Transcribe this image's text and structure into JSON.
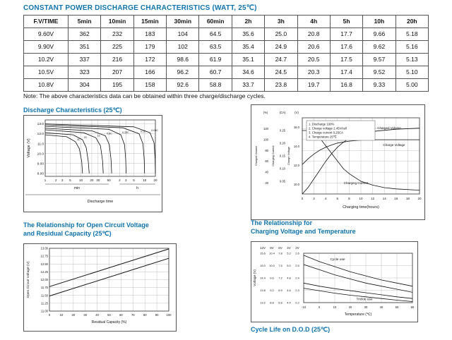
{
  "page": {
    "title": "CONSTANT POWER DISCHARGE CHARACTERISTICS (WATT, 25℃)",
    "note": "Note: The above characteristics data can be obtained within three charge/discharge cycles."
  },
  "table": {
    "headers": [
      "F.V/TIME",
      "5min",
      "10min",
      "15min",
      "30min",
      "60min",
      "2h",
      "3h",
      "4h",
      "5h",
      "10h",
      "20h"
    ],
    "rows": [
      [
        "9.60V",
        "362",
        "232",
        "183",
        "104",
        "64.5",
        "35.6",
        "25.0",
        "20.8",
        "17.7",
        "9.66",
        "5.18"
      ],
      [
        "9.90V",
        "351",
        "225",
        "179",
        "102",
        "63.5",
        "35.4",
        "24.9",
        "20.6",
        "17.6",
        "9.62",
        "5.16"
      ],
      [
        "10.2V",
        "337",
        "216",
        "172",
        "98.6",
        "61.9",
        "35.1",
        "24.7",
        "20.5",
        "17.5",
        "9.57",
        "5.13"
      ],
      [
        "10.5V",
        "323",
        "207",
        "166",
        "96.2",
        "60.7",
        "34.6",
        "24.5",
        "20.3",
        "17.4",
        "9.52",
        "5.10"
      ],
      [
        "10.8V",
        "304",
        "195",
        "158",
        "92.6",
        "58.8",
        "33.7",
        "23.8",
        "19.7",
        "16.8",
        "9.33",
        "5.00"
      ]
    ]
  },
  "sections": {
    "discharge_title": "Discharge Characteristics (25℃)",
    "ocv_title": [
      "The Relationship for Open Circuit Voltage",
      "and Residual Capacity (25℃)"
    ],
    "charging_title": [
      "The Relationship for",
      "Charging Voltage and Temperature"
    ],
    "cycle_title": "Cycle Life on D.O.D (25℃)"
  },
  "colors": {
    "accent": "#0f74ad",
    "line": "#111111",
    "grid": "#999999"
  },
  "chart_data": [
    {
      "id": "discharge",
      "type": "line",
      "title": "Discharge Characteristics (25℃)",
      "xlabel": "Discharge time",
      "ylabel": "Voltage (V)",
      "x_scale": "log-minutes",
      "x_ticks_min": [
        1,
        2,
        3,
        5,
        10,
        20,
        30,
        60
      ],
      "x_ticks_hours": [
        2,
        3,
        5,
        10,
        20
      ],
      "x_unit_labels": [
        "min",
        "h"
      ],
      "y_ticks": [
        "13.0",
        "12.0",
        "11.0",
        "10.0",
        "9.00",
        "8.00"
      ],
      "ylim": [
        7.7,
        13.4
      ],
      "series": [
        {
          "name": "3C",
          "points_min_v": [
            [
              1,
              11.9
            ],
            [
              4,
              11.7
            ],
            [
              7,
              11.2
            ],
            [
              9,
              10.5
            ],
            [
              10.5,
              9.2
            ],
            [
              11,
              8.0
            ]
          ]
        },
        {
          "name": "2C",
          "points_min_v": [
            [
              1,
              12.1
            ],
            [
              6,
              11.9
            ],
            [
              11,
              11.4
            ],
            [
              14,
              10.6
            ],
            [
              16,
              9.2
            ],
            [
              17,
              8.0
            ]
          ]
        },
        {
          "name": "1C",
          "points_min_v": [
            [
              1,
              12.4
            ],
            [
              12,
              12.1
            ],
            [
              26,
              11.6
            ],
            [
              35,
              10.8
            ],
            [
              40,
              9.3
            ],
            [
              42,
              8.0
            ]
          ]
        },
        {
          "name": "0.6C",
          "points_min_v": [
            [
              1,
              12.55
            ],
            [
              20,
              12.3
            ],
            [
              48,
              11.8
            ],
            [
              62,
              10.9
            ],
            [
              69,
              9.4
            ],
            [
              72,
              8.0
            ]
          ]
        },
        {
          "name": "0.25C",
          "points_min_v": [
            [
              1,
              12.75
            ],
            [
              60,
              12.45
            ],
            [
              130,
              11.9
            ],
            [
              165,
              10.9
            ],
            [
              178,
              9.4
            ],
            [
              183,
              8.0
            ]
          ]
        },
        {
          "name": "0.1C",
          "points_min_v": [
            [
              1,
              12.9
            ],
            [
              150,
              12.6
            ],
            [
              420,
              12.0
            ],
            [
              540,
              11.0
            ],
            [
              585,
              9.4
            ],
            [
              600,
              8.0
            ]
          ]
        },
        {
          "name": "0.05C",
          "points_min_v": [
            [
              1,
              13.0
            ],
            [
              300,
              12.7
            ],
            [
              850,
              12.1
            ],
            [
              1100,
              11.1
            ],
            [
              1180,
              9.5
            ],
            [
              1200,
              8.0
            ]
          ]
        }
      ]
    },
    {
      "id": "charge",
      "type": "line",
      "xlabel": "Charging time(hours)",
      "x_ticks": [
        0,
        2,
        4,
        6,
        8,
        10,
        12,
        14,
        16,
        18,
        20
      ],
      "axes": [
        {
          "name": "Charged Volume",
          "unit": "(%)",
          "ticks": [
            "120",
            "100",
            "80",
            "60",
            "40",
            "20"
          ],
          "min": 0,
          "max": 140
        },
        {
          "name": "Charging Current",
          "unit": "(CA)",
          "ticks": [
            "0.25",
            "0.20",
            "0.15",
            "0.10",
            "0.05"
          ],
          "min": 0,
          "max": 0.3
        },
        {
          "name": "Charge Voltage",
          "unit": "(V)",
          "ticks": [
            "16.0",
            "14.0",
            "12.0",
            "10.0"
          ],
          "min": 9,
          "max": 17
        }
      ],
      "legend": [
        "1. Discharge 100%",
        "2. Charge voltage 2.45V/cell",
        "3. Charge current 0.25CA",
        "4. Temperature 25℃"
      ],
      "curve_labels": [
        "Charged Volume",
        "Charge Voltage",
        "Charging Current"
      ],
      "series": [
        {
          "name": "Charged Volume",
          "axis": "(%)",
          "points": [
            [
              0,
              0
            ],
            [
              1,
              12
            ],
            [
              2,
              28
            ],
            [
              3,
              44
            ],
            [
              4,
              60
            ],
            [
              5,
              74
            ],
            [
              6,
              86
            ],
            [
              7,
              95
            ],
            [
              8,
              102
            ],
            [
              10,
              110
            ],
            [
              12,
              115
            ],
            [
              16,
              119
            ],
            [
              20,
              121
            ]
          ]
        },
        {
          "name": "Charge Voltage",
          "axis": "(V)",
          "points": [
            [
              0,
              12.1
            ],
            [
              1,
              12.7
            ],
            [
              2,
              13.2
            ],
            [
              3,
              13.6
            ],
            [
              4,
              13.9
            ],
            [
              5,
              14.15
            ],
            [
              6,
              14.35
            ],
            [
              8,
              14.55
            ],
            [
              10,
              14.65
            ],
            [
              12,
              14.7
            ],
            [
              16,
              14.7
            ],
            [
              20,
              14.7
            ]
          ]
        },
        {
          "name": "Charging Current",
          "axis": "(CA)",
          "points": [
            [
              0,
              0.25
            ],
            [
              1,
              0.25
            ],
            [
              2,
              0.24
            ],
            [
              3,
              0.22
            ],
            [
              4,
              0.19
            ],
            [
              5,
              0.16
            ],
            [
              6,
              0.13
            ],
            [
              7,
              0.1
            ],
            [
              8,
              0.08
            ],
            [
              10,
              0.05
            ],
            [
              12,
              0.035
            ],
            [
              14,
              0.025
            ],
            [
              16,
              0.02
            ],
            [
              20,
              0.015
            ]
          ]
        }
      ]
    },
    {
      "id": "ocv",
      "type": "line",
      "xlabel": "Residual Capacity (%)",
      "ylabel": "Open Circuit Voltage (V)",
      "x_ticks": [
        0,
        10,
        20,
        30,
        40,
        50,
        60,
        70,
        80,
        90,
        100
      ],
      "y_ticks": [
        "13.00",
        "12.75",
        "12.50",
        "12.25",
        "12.00",
        "11.75",
        "11.50",
        "11.25",
        "11.00"
      ],
      "ylim": [
        11.0,
        13.0
      ],
      "series": [
        {
          "name": "upper",
          "points": [
            [
              0,
              11.78
            ],
            [
              100,
              12.98
            ]
          ]
        },
        {
          "name": "lower",
          "points": [
            [
              0,
              11.48
            ],
            [
              100,
              12.68
            ]
          ]
        }
      ]
    },
    {
      "id": "temp",
      "type": "line",
      "xlabel": "Temperature (℃)",
      "ylabel": "Voltage (V)",
      "x_ticks": [
        -10,
        0,
        10,
        20,
        30,
        40,
        50,
        60
      ],
      "scales": {
        "headers": [
          "12V",
          "8V",
          "6V",
          "4V",
          "2V"
        ],
        "ticks": [
          [
            "15.6",
            "15.0",
            "14.4",
            "13.8",
            "13.2"
          ],
          [
            "10.4",
            "10.0",
            "9.6",
            "9.2",
            "8.8"
          ],
          [
            "7.8",
            "7.5",
            "7.2",
            "6.9",
            "6.6"
          ],
          [
            "5.2",
            "5.0",
            "4.8",
            "4.6",
            "4.4"
          ],
          [
            "2.6",
            "2.5",
            "2.4",
            "2.3",
            "2.2"
          ]
        ]
      },
      "annotations": [
        "Cycle use",
        "Trickle use"
      ],
      "series": [
        {
          "name": "cycle-upper",
          "points": [
            [
              -10,
              15.5
            ],
            [
              0,
              15.2
            ],
            [
              10,
              14.95
            ],
            [
              20,
              14.7
            ],
            [
              30,
              14.5
            ],
            [
              40,
              14.3
            ],
            [
              50,
              14.15
            ],
            [
              60,
              14.0
            ]
          ]
        },
        {
          "name": "cycle-lower",
          "points": [
            [
              -10,
              15.05
            ],
            [
              0,
              14.8
            ],
            [
              10,
              14.55
            ],
            [
              20,
              14.35
            ],
            [
              30,
              14.15
            ],
            [
              40,
              14.0
            ],
            [
              50,
              13.85
            ],
            [
              60,
              13.7
            ]
          ]
        },
        {
          "name": "trickle-upper",
          "points": [
            [
              -10,
              14.15
            ],
            [
              0,
              14.0
            ],
            [
              10,
              13.88
            ],
            [
              20,
              13.78
            ],
            [
              30,
              13.68
            ],
            [
              40,
              13.58
            ],
            [
              50,
              13.48
            ],
            [
              60,
              13.4
            ]
          ]
        },
        {
          "name": "trickle-lower",
          "points": [
            [
              -10,
              13.9
            ],
            [
              0,
              13.78
            ],
            [
              10,
              13.66
            ],
            [
              20,
              13.56
            ],
            [
              30,
              13.48
            ],
            [
              40,
              13.4
            ],
            [
              50,
              13.32
            ],
            [
              60,
              13.25
            ]
          ]
        }
      ]
    }
  ]
}
